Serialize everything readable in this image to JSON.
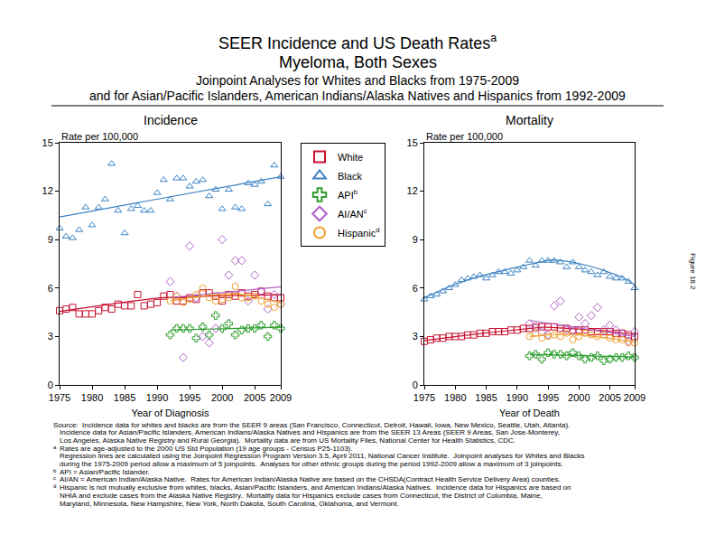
{
  "header": {
    "title": [
      "SEER Incidence and US Death Rates",
      "Myeloma, Both Sexes"
    ],
    "title_mark": "a",
    "subtitle": [
      "Joinpoint Analyses for Whites and Blacks from 1975-2009",
      "and for Asian/Pacific Islanders, American Indians/Alaska Natives and Hispanics from 1992-2009"
    ],
    "figure_label": "Figure 18.2"
  },
  "chart_data": [
    {
      "type": "scatter",
      "title": "Incidence",
      "xlabel": "Year of Diagnosis",
      "ylabel": "Rate per 100,000",
      "xlim": [
        1975,
        2009
      ],
      "xticks": [
        1975,
        1980,
        1985,
        1990,
        1995,
        2000,
        2005,
        2009
      ],
      "ylim": [
        0,
        15
      ],
      "yticks": [
        0,
        3,
        6,
        9,
        12,
        15
      ],
      "grid": false,
      "legend": "top center",
      "series": [
        {
          "name": "White",
          "color": "#c8102e",
          "marker": "square-open",
          "line_style": "solid",
          "x": [
            1975,
            1976,
            1977,
            1978,
            1979,
            1980,
            1981,
            1982,
            1983,
            1984,
            1985,
            1986,
            1987,
            1988,
            1989,
            1990,
            1991,
            1992,
            1993,
            1994,
            1995,
            1996,
            1997,
            1998,
            1999,
            2000,
            2001,
            2002,
            2003,
            2004,
            2005,
            2006,
            2007,
            2008,
            2009
          ],
          "values": [
            4.6,
            4.7,
            4.8,
            4.4,
            4.4,
            4.4,
            4.6,
            4.8,
            4.7,
            5.0,
            4.9,
            4.9,
            5.6,
            4.9,
            5.0,
            5.1,
            5.5,
            5.6,
            5.2,
            5.2,
            5.4,
            5.3,
            5.7,
            5.7,
            5.5,
            5.2,
            5.6,
            5.5,
            5.7,
            5.5,
            5.6,
            5.8,
            5.5,
            5.4,
            5.4
          ],
          "trend": [
            4.55,
            4.61,
            4.67,
            4.72,
            4.78,
            4.84,
            4.89,
            4.95,
            5.01,
            5.06,
            5.12,
            5.18,
            5.23,
            5.29,
            5.34,
            5.38,
            5.41,
            5.43,
            5.45,
            5.47,
            5.48,
            5.49,
            5.5,
            5.51,
            5.52,
            5.53,
            5.54,
            5.54,
            5.55,
            5.55,
            5.56,
            5.56,
            5.57,
            5.57,
            5.58
          ]
        },
        {
          "name": "Black",
          "color": "#3b82c4",
          "marker": "triangle-up-open",
          "line_style": "solid",
          "x": [
            1975,
            1976,
            1977,
            1978,
            1979,
            1980,
            1981,
            1982,
            1983,
            1984,
            1985,
            1986,
            1987,
            1988,
            1989,
            1990,
            1991,
            1992,
            1993,
            1994,
            1995,
            1996,
            1997,
            1998,
            1999,
            2000,
            2001,
            2002,
            2003,
            2004,
            2005,
            2006,
            2007,
            2008,
            2009
          ],
          "values": [
            9.7,
            9.2,
            9.1,
            9.6,
            11.0,
            9.9,
            11.0,
            11.5,
            13.7,
            10.8,
            9.4,
            10.9,
            11.1,
            10.8,
            10.8,
            11.9,
            12.7,
            11.5,
            12.8,
            12.8,
            12.3,
            12.6,
            12.7,
            11.7,
            12.1,
            10.9,
            12.1,
            11.0,
            10.9,
            12.5,
            12.4,
            12.6,
            11.2,
            13.6,
            12.9
          ],
          "trend": [
            10.4,
            10.47,
            10.55,
            10.62,
            10.69,
            10.77,
            10.84,
            10.91,
            10.99,
            11.06,
            11.14,
            11.21,
            11.28,
            11.36,
            11.43,
            11.5,
            11.58,
            11.65,
            11.72,
            11.8,
            11.87,
            11.94,
            12.02,
            12.09,
            12.16,
            12.24,
            12.31,
            12.38,
            12.46,
            12.53,
            12.6,
            12.68,
            12.75,
            12.82,
            12.9
          ]
        },
        {
          "name": "API",
          "mark": "b",
          "color": "#2e9e2e",
          "marker": "cross-open",
          "line_style": "solid",
          "x": [
            1992,
            1993,
            1994,
            1995,
            1996,
            1997,
            1998,
            1999,
            2000,
            2001,
            2002,
            2003,
            2004,
            2005,
            2006,
            2007,
            2008,
            2009
          ],
          "values": [
            3.1,
            3.5,
            3.5,
            3.5,
            2.9,
            3.6,
            3.1,
            4.3,
            3.5,
            3.8,
            3.1,
            3.4,
            3.5,
            3.5,
            3.7,
            3.0,
            3.7,
            3.5
          ],
          "trend": [
            3.4,
            3.41,
            3.42,
            3.43,
            3.44,
            3.45,
            3.46,
            3.47,
            3.48,
            3.49,
            3.5,
            3.51,
            3.52,
            3.53,
            3.54,
            3.55,
            3.56,
            3.57
          ]
        },
        {
          "name": "AI/AN",
          "mark": "c",
          "color": "#b060c8",
          "marker": "diamond-open",
          "line_style": "solid",
          "x": [
            1992,
            1993,
            1994,
            1995,
            1996,
            1997,
            1998,
            1999,
            2000,
            2001,
            2002,
            2003,
            2004,
            2005,
            2006,
            2007,
            2008,
            2009
          ],
          "values": [
            6.4,
            5.5,
            1.7,
            8.6,
            5.4,
            3.0,
            2.6,
            3.5,
            9.0,
            6.8,
            7.7,
            7.7,
            5.2,
            6.8,
            5.8,
            4.7,
            5.6,
            5.0
          ],
          "trend": [
            5.4,
            5.44,
            5.48,
            5.52,
            5.56,
            5.6,
            5.64,
            5.68,
            5.72,
            5.76,
            5.8,
            5.84,
            5.88,
            5.92,
            5.96,
            6.0,
            6.04,
            6.08
          ]
        },
        {
          "name": "Hispanic",
          "mark": "d",
          "color": "#f0a030",
          "marker": "circle-open",
          "line_style": "solid",
          "x": [
            1992,
            1993,
            1994,
            1995,
            1996,
            1997,
            1998,
            1999,
            2000,
            2001,
            2002,
            2003,
            2004,
            2005,
            2006,
            2007,
            2008,
            2009
          ],
          "values": [
            5.2,
            5.5,
            5.1,
            5.3,
            5.6,
            6.0,
            5.4,
            5.2,
            5.3,
            5.4,
            6.1,
            5.4,
            5.4,
            5.5,
            5.2,
            5.0,
            4.8,
            5.0
          ],
          "trend": [
            5.2,
            5.27,
            5.34,
            5.4,
            5.46,
            5.51,
            5.56,
            5.6,
            5.63,
            5.65,
            5.66,
            5.62,
            5.55,
            5.47,
            5.38,
            5.28,
            5.18,
            5.08
          ]
        }
      ]
    },
    {
      "type": "scatter",
      "title": "Mortality",
      "xlabel": "Year of Death",
      "ylabel": "Rate per 100,000",
      "xlim": [
        1975,
        2009
      ],
      "xticks": [
        1975,
        1980,
        1985,
        1990,
        1995,
        2000,
        2005,
        2009
      ],
      "ylim": [
        0,
        15
      ],
      "yticks": [
        0,
        3,
        6,
        9,
        12,
        15
      ],
      "grid": false,
      "series": [
        {
          "name": "White",
          "color": "#c8102e",
          "marker": "square-open",
          "line_style": "solid",
          "x": [
            1975,
            1976,
            1977,
            1978,
            1979,
            1980,
            1981,
            1982,
            1983,
            1984,
            1985,
            1986,
            1987,
            1988,
            1989,
            1990,
            1991,
            1992,
            1993,
            1994,
            1995,
            1996,
            1997,
            1998,
            1999,
            2000,
            2001,
            2002,
            2003,
            2004,
            2005,
            2006,
            2007,
            2008,
            2009
          ],
          "values": [
            2.7,
            2.8,
            2.9,
            2.9,
            3.0,
            3.0,
            3.0,
            3.1,
            3.1,
            3.2,
            3.2,
            3.3,
            3.3,
            3.3,
            3.4,
            3.4,
            3.5,
            3.5,
            3.6,
            3.6,
            3.6,
            3.6,
            3.5,
            3.5,
            3.4,
            3.4,
            3.4,
            3.3,
            3.3,
            3.3,
            3.3,
            3.2,
            3.2,
            3.1,
            3.0
          ],
          "trend": [
            2.75,
            2.8,
            2.85,
            2.9,
            2.95,
            3.0,
            3.05,
            3.1,
            3.14,
            3.18,
            3.22,
            3.26,
            3.3,
            3.34,
            3.38,
            3.42,
            3.46,
            3.5,
            3.54,
            3.58,
            3.57,
            3.55,
            3.53,
            3.51,
            3.49,
            3.47,
            3.45,
            3.42,
            3.39,
            3.36,
            3.32,
            3.28,
            3.23,
            3.18,
            3.12
          ]
        },
        {
          "name": "Black",
          "color": "#3b82c4",
          "marker": "triangle-up-open",
          "line_style": "solid",
          "x": [
            1975,
            1976,
            1977,
            1978,
            1979,
            1980,
            1981,
            1982,
            1983,
            1984,
            1985,
            1986,
            1987,
            1988,
            1989,
            1990,
            1991,
            1992,
            1993,
            1994,
            1995,
            1996,
            1997,
            1998,
            1999,
            2000,
            2001,
            2002,
            2003,
            2004,
            2005,
            2006,
            2007,
            2008,
            2009
          ],
          "values": [
            5.3,
            5.5,
            5.6,
            5.8,
            6.0,
            6.2,
            6.5,
            6.6,
            6.7,
            6.8,
            6.6,
            6.8,
            7.0,
            7.0,
            6.9,
            7.1,
            7.3,
            7.7,
            7.4,
            7.7,
            7.7,
            7.7,
            7.6,
            7.3,
            7.6,
            7.3,
            7.1,
            7.0,
            6.8,
            7.0,
            6.7,
            6.6,
            6.6,
            6.4,
            6.0
          ],
          "trend": [
            5.4,
            5.58,
            5.76,
            5.93,
            6.09,
            6.24,
            6.38,
            6.51,
            6.63,
            6.74,
            6.84,
            6.94,
            7.03,
            7.12,
            7.21,
            7.3,
            7.39,
            7.48,
            7.57,
            7.66,
            7.72,
            7.74,
            7.71,
            7.66,
            7.6,
            7.52,
            7.43,
            7.33,
            7.22,
            7.1,
            6.97,
            6.82,
            6.66,
            6.47,
            6.2
          ]
        },
        {
          "name": "API",
          "mark": "b",
          "color": "#2e9e2e",
          "marker": "cross-open",
          "line_style": "solid",
          "x": [
            1992,
            1993,
            1994,
            1995,
            1996,
            1997,
            1998,
            1999,
            2000,
            2001,
            2002,
            2003,
            2004,
            2005,
            2006,
            2007,
            2008,
            2009
          ],
          "values": [
            1.8,
            1.9,
            1.6,
            2.0,
            1.9,
            1.9,
            1.8,
            2.0,
            1.8,
            1.6,
            1.7,
            1.8,
            1.5,
            1.6,
            1.7,
            1.7,
            1.8,
            1.7
          ],
          "trend": [
            1.9,
            1.89,
            1.88,
            1.87,
            1.86,
            1.85,
            1.84,
            1.83,
            1.82,
            1.81,
            1.8,
            1.79,
            1.78,
            1.77,
            1.76,
            1.75,
            1.74,
            1.73
          ]
        },
        {
          "name": "AI/AN",
          "mark": "c",
          "color": "#b060c8",
          "marker": "diamond-open",
          "line_style": "solid",
          "x": [
            1992,
            1993,
            1994,
            1995,
            1996,
            1997,
            1998,
            1999,
            2000,
            2001,
            2002,
            2003,
            2004,
            2005,
            2006,
            2007,
            2008,
            2009
          ],
          "values": [
            3.8,
            3.5,
            3.3,
            3.1,
            4.9,
            5.2,
            3.4,
            3.3,
            4.2,
            3.8,
            4.3,
            4.8,
            3.4,
            3.7,
            3.4,
            3.2,
            2.7,
            3.3
          ],
          "trend": [
            4.0,
            3.94,
            3.88,
            3.82,
            3.76,
            3.71,
            3.65,
            3.59,
            3.53,
            3.47,
            3.41,
            3.35,
            3.29,
            3.24,
            3.18,
            3.12,
            3.06,
            3.0
          ]
        },
        {
          "name": "Hispanic",
          "mark": "d",
          "color": "#f0a030",
          "marker": "circle-open",
          "line_style": "solid",
          "x": [
            1992,
            1993,
            1994,
            1995,
            1996,
            1997,
            1998,
            1999,
            2000,
            2001,
            2002,
            2003,
            2004,
            2005,
            2006,
            2007,
            2008,
            2009
          ],
          "values": [
            3.0,
            3.2,
            2.9,
            3.0,
            3.1,
            3.0,
            3.2,
            2.8,
            3.0,
            3.2,
            3.1,
            3.0,
            3.1,
            2.9,
            2.8,
            2.8,
            2.6,
            2.6
          ],
          "trend": [
            3.0,
            3.04,
            3.07,
            3.1,
            3.12,
            3.13,
            3.13,
            3.12,
            3.1,
            3.07,
            3.03,
            2.99,
            2.94,
            2.89,
            2.83,
            2.77,
            2.7,
            2.63
          ]
        }
      ]
    }
  ],
  "footnotes": [
    {
      "lines": [
        "Source:  Incidence data for whites and blacks are from the SEER 9 areas (San Francisco, Connecticut, Detroit, Hawaii, Iowa, New Mexico, Seattle, Utah, Atlanta).",
        "Incidence data for Asian/Pacific Islanders, American Indians/Alaska Natives and Hispanics are from the SEER 13 Areas (SEER 9 Areas, San Jose-Monterey,",
        "Los Angeles, Alaska Native Registry and Rural Georgia).  Mortality data are from US Mortality Files, National Center for Health Statistics, CDC."
      ]
    },
    {
      "mark": "a",
      "lines": [
        "Rates are age-adjusted to the 2000 US Std Population (19 age groups - Census P25-1103).",
        "Regression lines are calculated using the Joinpoint Regression Program Version 3.5, April 2011, National Cancer Institute.  Joinpoint analyses for Whites and Blacks",
        "during the 1975-2009 period allow a maximum of 5 joinpoints.  Analyses for other ethnic groups during the period 1992-2009 allow a maximum of 3 joinpoints."
      ]
    },
    {
      "mark": "b",
      "lines": [
        "API = Asian/Pacific Islander."
      ]
    },
    {
      "mark": "c",
      "lines": [
        "AI/AN = American Indian/Alaska Native.  Rates for American Indian/Alaska Native are based on the CHSDA(Contract Health Service Delivery Area) counties."
      ]
    },
    {
      "mark": "d",
      "lines": [
        "Hispanic is not mutually exclusive from whites, blacks, Asian/Pacific Islanders, and American Indians/Alaska Natives.  Incidence data for Hispanics are based on",
        "NHIA and exclude cases from the Alaska Native Registry.  Mortality data for Hispanics exclude cases from Connecticut, the District of Columbia, Maine,",
        "Maryland, Minnesota, New Hampshire, New York, North Dakota, South Carolina, Oklahoma, and Vermont."
      ]
    }
  ]
}
